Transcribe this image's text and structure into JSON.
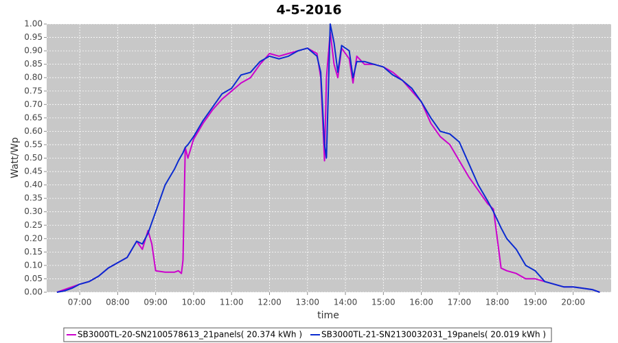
{
  "chart_data": {
    "type": "line",
    "title": "4-5-2016",
    "x_label": "time",
    "y_label": "Watt/Wp",
    "x": [
      6.4,
      6.6,
      6.8,
      7.0,
      7.25,
      7.5,
      7.75,
      8.0,
      8.25,
      8.5,
      8.65,
      8.8,
      8.9,
      9.0,
      9.25,
      9.5,
      9.6,
      9.68,
      9.72,
      9.78,
      9.85,
      10.0,
      10.25,
      10.5,
      10.75,
      11.0,
      11.25,
      11.5,
      11.75,
      12.0,
      12.25,
      12.5,
      12.75,
      13.0,
      13.25,
      13.35,
      13.45,
      13.5,
      13.6,
      13.7,
      13.8,
      13.9,
      14.1,
      14.2,
      14.3,
      14.5,
      14.75,
      15.0,
      15.25,
      15.5,
      15.75,
      16.0,
      16.25,
      16.5,
      16.75,
      17.0,
      17.25,
      17.5,
      17.75,
      17.9,
      18.0,
      18.1,
      18.25,
      18.5,
      18.75,
      19.0,
      19.25,
      19.5,
      19.75,
      20.0,
      20.25,
      20.5,
      20.7
    ],
    "series": [
      {
        "name": "SB3000TL-20-SN2100578613_21panels( 20.374 kWh )",
        "color": "#cc00cc",
        "values": [
          0.0,
          0.01,
          0.02,
          0.03,
          0.04,
          0.06,
          0.09,
          0.11,
          0.13,
          0.19,
          0.16,
          0.23,
          0.18,
          0.08,
          0.075,
          0.075,
          0.08,
          0.07,
          0.12,
          0.54,
          0.5,
          0.57,
          0.63,
          0.68,
          0.72,
          0.75,
          0.78,
          0.8,
          0.85,
          0.89,
          0.88,
          0.89,
          0.9,
          0.91,
          0.89,
          0.8,
          0.49,
          0.8,
          0.97,
          0.85,
          0.8,
          0.91,
          0.87,
          0.78,
          0.88,
          0.85,
          0.85,
          0.84,
          0.82,
          0.79,
          0.75,
          0.71,
          0.63,
          0.58,
          0.55,
          0.49,
          0.43,
          0.38,
          0.33,
          0.31,
          0.2,
          0.09,
          0.08,
          0.07,
          0.05,
          0.05,
          0.04,
          0.03,
          0.02,
          0.02,
          0.015,
          0.01,
          0.0
        ]
      },
      {
        "name": "SB3000TL-21-SN2130032031_19panels( 20.019 kWh )",
        "color": "#0a2bd0",
        "values": [
          0.0,
          0.005,
          0.015,
          0.03,
          0.04,
          0.06,
          0.09,
          0.11,
          0.13,
          0.19,
          0.18,
          0.22,
          0.26,
          0.3,
          0.4,
          0.46,
          0.49,
          0.51,
          0.52,
          0.54,
          0.55,
          0.58,
          0.64,
          0.69,
          0.74,
          0.76,
          0.81,
          0.82,
          0.86,
          0.88,
          0.87,
          0.88,
          0.9,
          0.91,
          0.88,
          0.82,
          0.55,
          0.5,
          1.0,
          0.93,
          0.82,
          0.92,
          0.9,
          0.8,
          0.86,
          0.86,
          0.85,
          0.84,
          0.81,
          0.79,
          0.76,
          0.71,
          0.65,
          0.6,
          0.59,
          0.56,
          0.48,
          0.4,
          0.34,
          0.3,
          0.27,
          0.24,
          0.2,
          0.16,
          0.1,
          0.08,
          0.04,
          0.03,
          0.02,
          0.02,
          0.015,
          0.01,
          0.0
        ]
      }
    ],
    "xlim": [
      6.13,
      21.0
    ],
    "xticks": [
      {
        "value": 7,
        "label": "07:00"
      },
      {
        "value": 8,
        "label": "08:00"
      },
      {
        "value": 9,
        "label": "09:00"
      },
      {
        "value": 10,
        "label": "10:00"
      },
      {
        "value": 11,
        "label": "11:00"
      },
      {
        "value": 12,
        "label": "12:00"
      },
      {
        "value": 13,
        "label": "13:00"
      },
      {
        "value": 14,
        "label": "14:00"
      },
      {
        "value": 15,
        "label": "15:00"
      },
      {
        "value": 16,
        "label": "16:00"
      },
      {
        "value": 17,
        "label": "17:00"
      },
      {
        "value": 18,
        "label": "18:00"
      },
      {
        "value": 19,
        "label": "19:00"
      },
      {
        "value": 20,
        "label": "20:00"
      }
    ],
    "ylim": [
      0,
      1.0
    ],
    "yticks": [
      {
        "value": 0,
        "label": "0.00"
      },
      {
        "value": 0.05,
        "label": "0.05"
      },
      {
        "value": 0.1,
        "label": "0.10"
      },
      {
        "value": 0.15,
        "label": "0.15"
      },
      {
        "value": 0.2,
        "label": "0.20"
      },
      {
        "value": 0.25,
        "label": "0.25"
      },
      {
        "value": 0.3,
        "label": "0.30"
      },
      {
        "value": 0.35,
        "label": "0.35"
      },
      {
        "value": 0.4,
        "label": "0.40"
      },
      {
        "value": 0.45,
        "label": "0.45"
      },
      {
        "value": 0.5,
        "label": "0.50"
      },
      {
        "value": 0.55,
        "label": "0.55"
      },
      {
        "value": 0.6,
        "label": "0.60"
      },
      {
        "value": 0.65,
        "label": "0.65"
      },
      {
        "value": 0.7,
        "label": "0.70"
      },
      {
        "value": 0.75,
        "label": "0.75"
      },
      {
        "value": 0.8,
        "label": "0.80"
      },
      {
        "value": 0.85,
        "label": "0.85"
      },
      {
        "value": 0.9,
        "label": "0.90"
      },
      {
        "value": 0.95,
        "label": "0.95"
      },
      {
        "value": 1.0,
        "label": "1.00"
      }
    ],
    "grid": true,
    "legend": "bottom"
  }
}
